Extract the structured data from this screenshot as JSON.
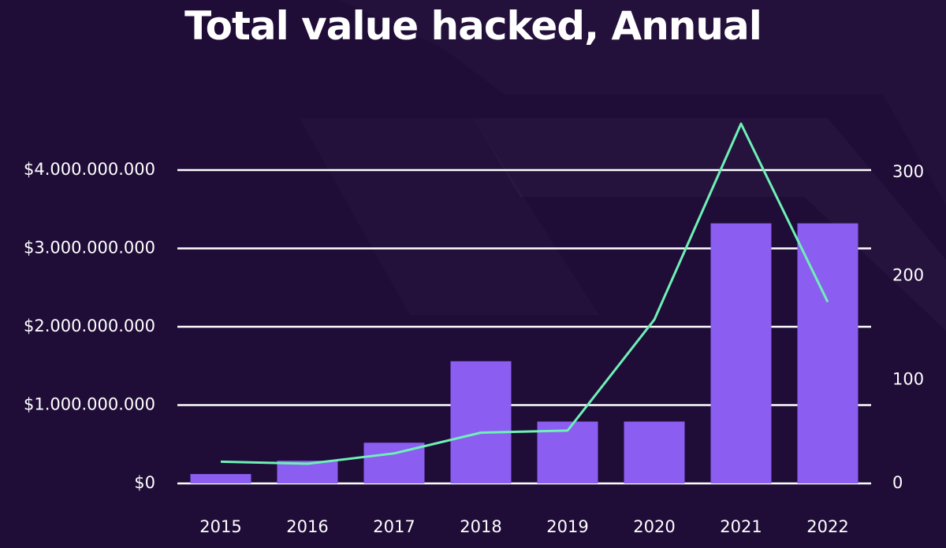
{
  "chart_data": {
    "type": "bar",
    "title": "Total value hacked, Annual",
    "categories": [
      "2015",
      "2016",
      "2017",
      "2018",
      "2019",
      "2020",
      "2021",
      "2022"
    ],
    "series": [
      {
        "axis": "left",
        "type": "bar",
        "color": "#8b5df0",
        "values": [
          120000000,
          290000000,
          520000000,
          1560000000,
          790000000,
          790000000,
          3320000000,
          3320000000
        ]
      },
      {
        "axis": "right",
        "type": "line",
        "color": "#6ef0b6",
        "values": [
          21,
          19,
          29,
          49,
          51,
          158,
          347,
          175
        ]
      }
    ],
    "y_left": {
      "range": [
        0,
        4000000000
      ],
      "ticks": [
        0,
        1000000000,
        2000000000,
        3000000000,
        4000000000
      ],
      "tick_labels": [
        "$0",
        "$1.000.000.000",
        "$2.000.000.000",
        "$3.000.000.000",
        "$4.000.000.000"
      ]
    },
    "y_right": {
      "range": [
        0,
        300
      ],
      "ticks": [
        0,
        100,
        200,
        300
      ],
      "tick_labels": [
        "0",
        "100",
        "200",
        "300"
      ]
    },
    "grid": true,
    "legend": "none",
    "background": "#1f0c37"
  }
}
